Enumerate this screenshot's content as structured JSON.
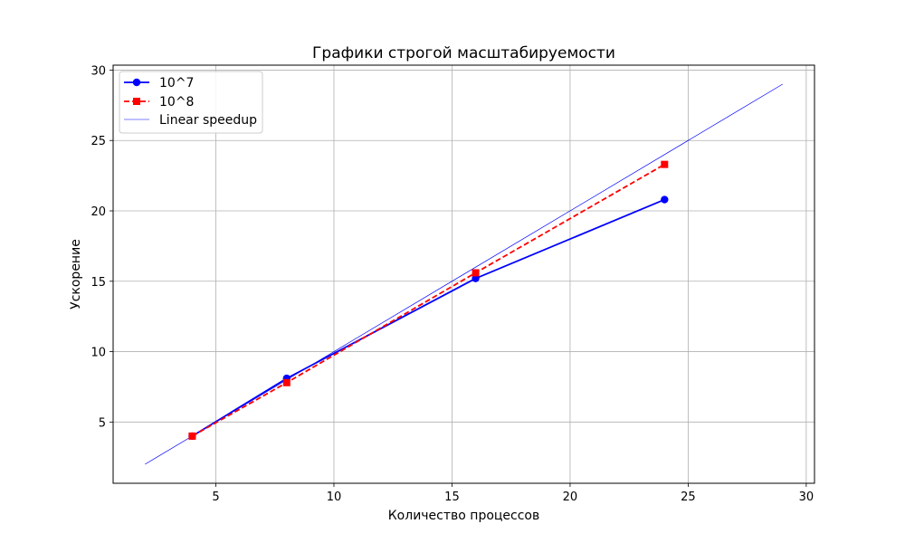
{
  "chart_data": {
    "type": "line",
    "title": "Графики строгой масштабируемости",
    "xlabel": "Количество процессов",
    "ylabel": "Ускорение",
    "xlim": [
      0.65,
      30.35
    ],
    "ylim": [
      0.65,
      30.35
    ],
    "xticks": [
      5,
      10,
      15,
      20,
      25,
      30
    ],
    "yticks": [
      5,
      10,
      15,
      20,
      25,
      30
    ],
    "grid": true,
    "legend_position": "top-left",
    "series": [
      {
        "name": "10^7",
        "color": "#0000ff",
        "line_style": "solid",
        "marker": "circle",
        "x": [
          4,
          8,
          16,
          24
        ],
        "y": [
          4.0,
          8.1,
          15.2,
          20.8
        ]
      },
      {
        "name": "10^8",
        "color": "#ff0000",
        "line_style": "dashed",
        "marker": "square",
        "x": [
          4,
          8,
          16,
          24
        ],
        "y": [
          4.0,
          7.8,
          15.6,
          23.3
        ]
      },
      {
        "name": "Linear speedup",
        "color": "#0000ff",
        "line_style": "thin",
        "marker": "none",
        "x": [
          2,
          29
        ],
        "y": [
          2,
          29
        ]
      }
    ]
  }
}
